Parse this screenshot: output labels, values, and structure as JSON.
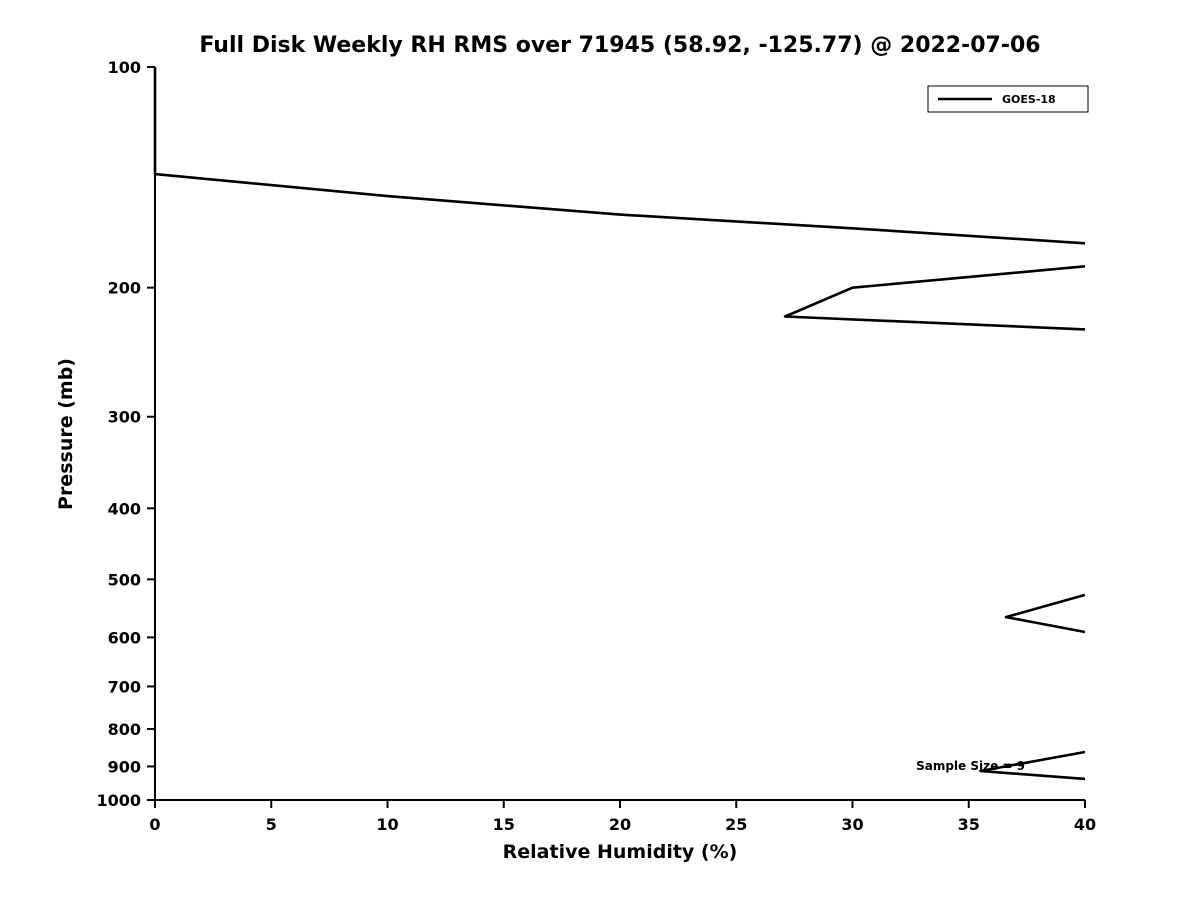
{
  "chart_data": {
    "type": "line",
    "title": "Full Disk Weekly RH RMS over 71945 (58.92, -125.77) @ 2022-07-06",
    "xlabel": "Relative Humidity (%)",
    "ylabel": "Pressure (mb)",
    "xlim": [
      0,
      40
    ],
    "ylim": [
      100,
      1000
    ],
    "y_scale": "log",
    "y_inverted": true,
    "grid": false,
    "x_ticks": [
      0,
      5,
      10,
      15,
      20,
      25,
      30,
      35,
      40
    ],
    "y_ticks": [
      100,
      200,
      300,
      400,
      500,
      600,
      700,
      800,
      900,
      1000
    ],
    "legend_position": "top-right",
    "annotation": {
      "text": "Sample Size = 9"
    },
    "series": [
      {
        "name": "GOES-18",
        "color": "#000000",
        "line_width": 2.6,
        "segments": [
          [
            [
              0,
              100
            ],
            [
              0,
              140
            ],
            [
              10,
              150
            ],
            [
              20,
              159
            ],
            [
              30,
              166
            ],
            [
              40,
              174
            ]
          ],
          [
            [
              40,
              187
            ],
            [
              30,
              200
            ],
            [
              27.1,
              219
            ],
            [
              40,
              228
            ]
          ],
          [
            [
              40,
              525
            ],
            [
              36.6,
              563
            ],
            [
              40,
              590
            ]
          ],
          [
            [
              40,
              860
            ],
            [
              35.5,
              913
            ],
            [
              40,
              936
            ]
          ]
        ]
      }
    ]
  }
}
